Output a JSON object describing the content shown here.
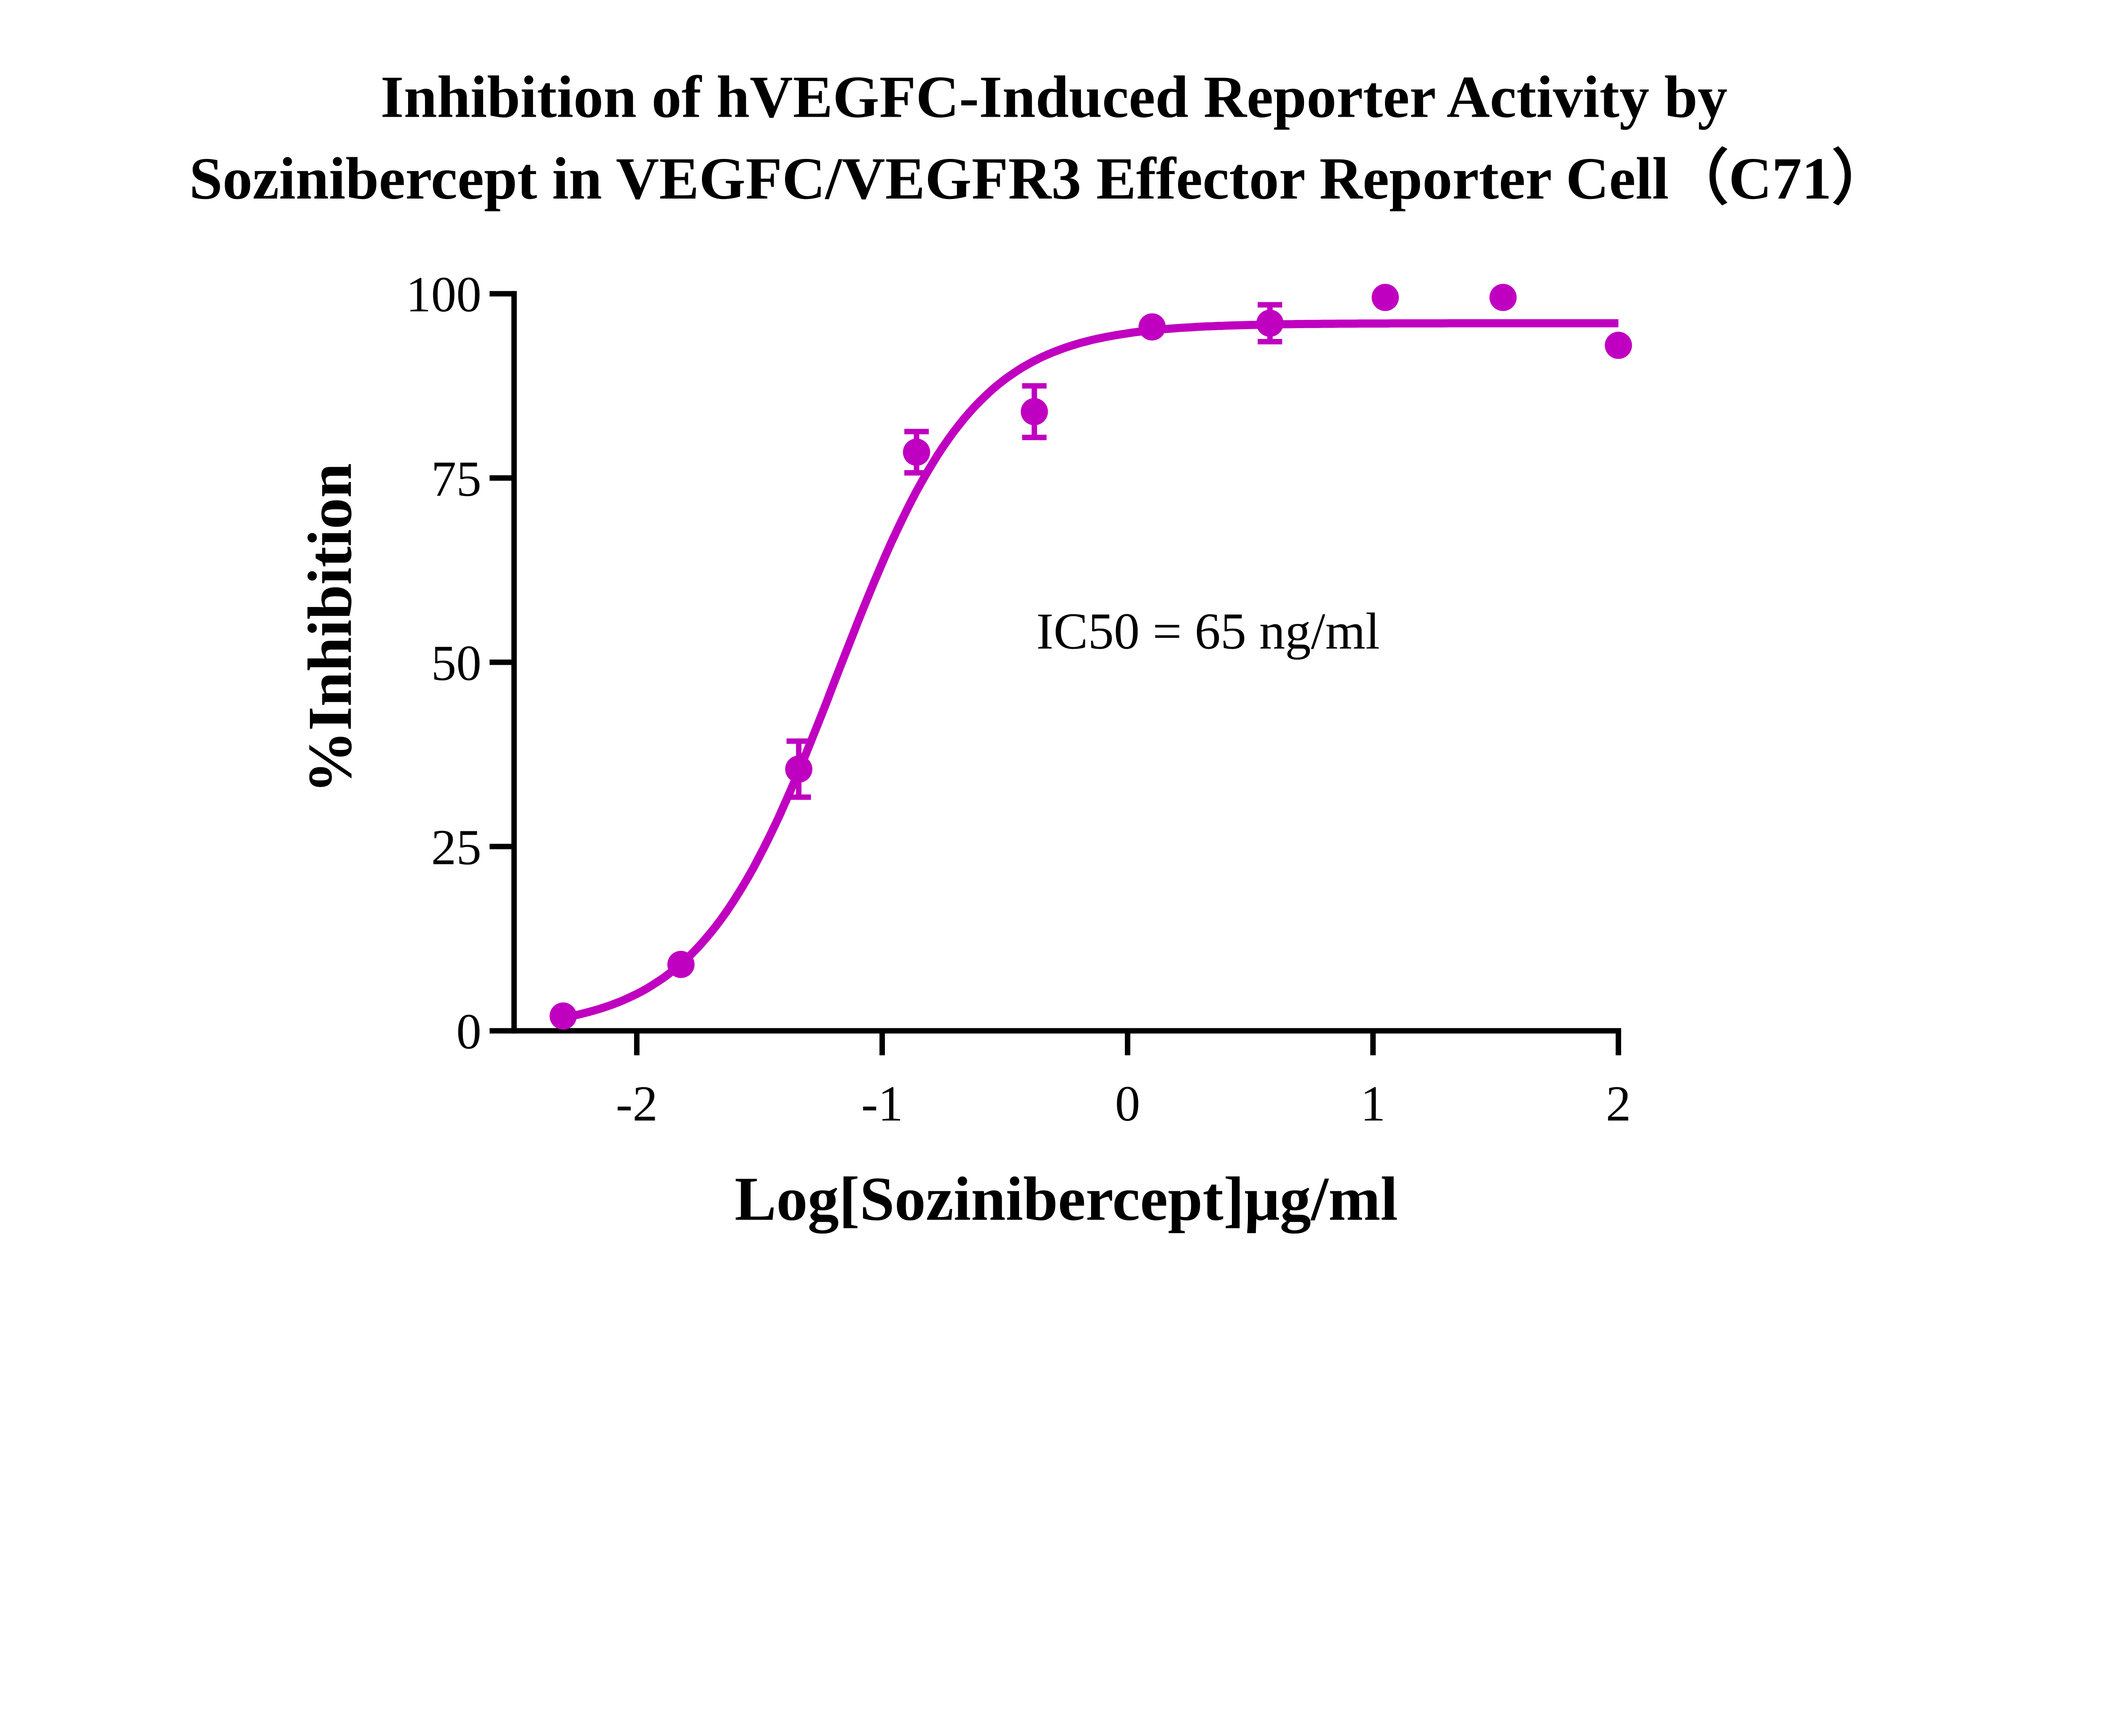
{
  "chart_data": {
    "type": "scatter",
    "title_lines": [
      "Inhibition of hVEGFC-Induced Reporter Activity by",
      "Sozinibercept in VEGFC/VEGFR3 Effector Reporter Cell（C71）"
    ],
    "xlabel": "Log[Sozinibercept]μg/ml",
    "ylabel": "%Inhibition",
    "xlim": [
      -2.5,
      2
    ],
    "ylim": [
      0,
      100
    ],
    "xticks": [
      -2,
      -1,
      0,
      1,
      2
    ],
    "xtick_labels": [
      "-2",
      "-1",
      "0",
      "1",
      "2"
    ],
    "yticks": [
      0,
      25,
      50,
      75,
      100
    ],
    "ytick_labels": [
      "0",
      "25",
      "50",
      "75",
      "100"
    ],
    "annotation": "IC50 = 65 ng/ml",
    "color": "#C000C0",
    "grid": false,
    "points": [
      {
        "x": -2.3,
        "y": 2.0,
        "err": 0
      },
      {
        "x": -1.82,
        "y": 9.0,
        "err": 0
      },
      {
        "x": -1.34,
        "y": 35.5,
        "err": 3.8
      },
      {
        "x": -0.86,
        "y": 78.5,
        "err": 2.8
      },
      {
        "x": -0.38,
        "y": 84.0,
        "err": 3.5
      },
      {
        "x": 0.1,
        "y": 95.5,
        "err": 0
      },
      {
        "x": 0.58,
        "y": 96.0,
        "err": 2.5
      },
      {
        "x": 1.05,
        "y": 99.5,
        "err": 0
      },
      {
        "x": 1.53,
        "y": 99.5,
        "err": 0
      },
      {
        "x": 2.0,
        "y": 93.0,
        "err": 0
      }
    ],
    "fit": {
      "model": "four-parameter logistic",
      "bottom": 0,
      "top": 96,
      "logIC50": -1.187,
      "hill": 1.55,
      "x_range": [
        -2.3,
        2.0
      ]
    }
  }
}
